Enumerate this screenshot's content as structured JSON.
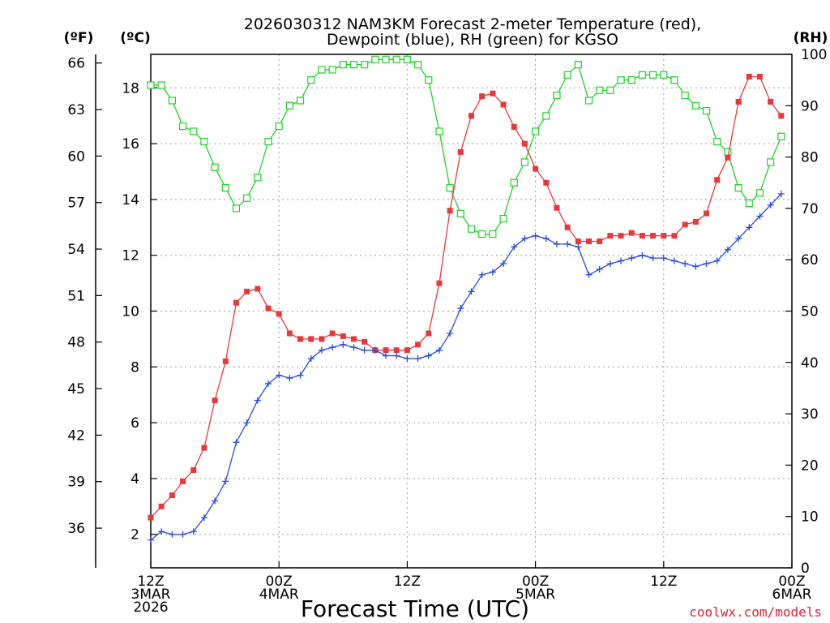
{
  "chart_data": {
    "type": "line",
    "title_line1": "2026030312 NAM3KM Forecast 2-meter Temperature (red),",
    "title_line2": "Dewpoint (blue), RH (green) for KGSO",
    "xlabel": "Forecast Time (UTC)",
    "credit": "coolwx.com/models",
    "units": {
      "fahrenheit": "(ºF)",
      "celsius": "(ºC)",
      "rh": "(RH)"
    },
    "x_range_hours": [
      0,
      60
    ],
    "c_range": [
      0.8,
      19.2
    ],
    "rh_range": [
      0,
      100
    ],
    "x_ticks": [
      {
        "hour": 0,
        "lines": [
          "12Z",
          "3MAR",
          "2026"
        ]
      },
      {
        "hour": 12,
        "lines": [
          "00Z",
          "4MAR"
        ]
      },
      {
        "hour": 24,
        "lines": [
          "12Z"
        ]
      },
      {
        "hour": 36,
        "lines": [
          "00Z",
          "5MAR"
        ]
      },
      {
        "hour": 48,
        "lines": [
          "12Z"
        ]
      },
      {
        "hour": 60,
        "lines": [
          "00Z",
          "6MAR"
        ]
      }
    ],
    "celsius_ticks": [
      2,
      4,
      6,
      8,
      10,
      12,
      14,
      16,
      18
    ],
    "fahrenheit_ticks": [
      36,
      39,
      42,
      45,
      48,
      51,
      54,
      57,
      60,
      63,
      66
    ],
    "rh_ticks": [
      0,
      10,
      20,
      30,
      40,
      50,
      60,
      70,
      80,
      90,
      100
    ],
    "series": [
      {
        "name": "Temperature",
        "unit": "C",
        "color": "#e8383c",
        "marker": "filled-square",
        "values": [
          2.6,
          3.0,
          3.4,
          3.9,
          4.3,
          5.1,
          6.8,
          8.2,
          10.3,
          10.7,
          10.8,
          10.1,
          9.9,
          9.2,
          9.0,
          9.0,
          9.0,
          9.2,
          9.1,
          9.0,
          8.9,
          8.6,
          8.6,
          8.6,
          8.6,
          8.8,
          9.2,
          11.0,
          13.6,
          15.7,
          17.0,
          17.7,
          17.8,
          17.4,
          16.6,
          16.0,
          15.1,
          14.6,
          13.7,
          13.0,
          12.5,
          12.5,
          12.5,
          12.7,
          12.7,
          12.8,
          12.7,
          12.7,
          12.7,
          12.7,
          13.1,
          13.2,
          13.5,
          14.7,
          15.5,
          17.5,
          18.4,
          18.4,
          17.5,
          17.0
        ]
      },
      {
        "name": "Dewpoint",
        "unit": "C",
        "color": "#2a49e0",
        "marker": "plus",
        "values": [
          1.8,
          2.1,
          2.0,
          2.0,
          2.1,
          2.6,
          3.2,
          3.9,
          5.3,
          6.0,
          6.8,
          7.4,
          7.7,
          7.6,
          7.7,
          8.3,
          8.6,
          8.7,
          8.8,
          8.7,
          8.6,
          8.6,
          8.4,
          8.4,
          8.3,
          8.3,
          8.4,
          8.6,
          9.2,
          10.1,
          10.7,
          11.3,
          11.4,
          11.7,
          12.3,
          12.6,
          12.7,
          12.6,
          12.4,
          12.4,
          12.3,
          11.3,
          11.5,
          11.7,
          11.8,
          11.9,
          12.0,
          11.9,
          11.9,
          11.8,
          11.7,
          11.6,
          11.7,
          11.8,
          12.2,
          12.6,
          13.0,
          13.4,
          13.8,
          14.2
        ]
      },
      {
        "name": "RH",
        "unit": "%",
        "color": "#22d02a",
        "marker": "open-square",
        "values": [
          94,
          94,
          91,
          86,
          85,
          83,
          78,
          74,
          70,
          72,
          76,
          83,
          86,
          90,
          91,
          95,
          97,
          97,
          98,
          98,
          98,
          99,
          99,
          99,
          99,
          98,
          95,
          85,
          74,
          69,
          66,
          65,
          65,
          68,
          75,
          79,
          85,
          88,
          92,
          96,
          98,
          91,
          93,
          93,
          95,
          95,
          96,
          96,
          96,
          95,
          92,
          90,
          89,
          83,
          81,
          74,
          71,
          73,
          79,
          84
        ]
      }
    ]
  }
}
